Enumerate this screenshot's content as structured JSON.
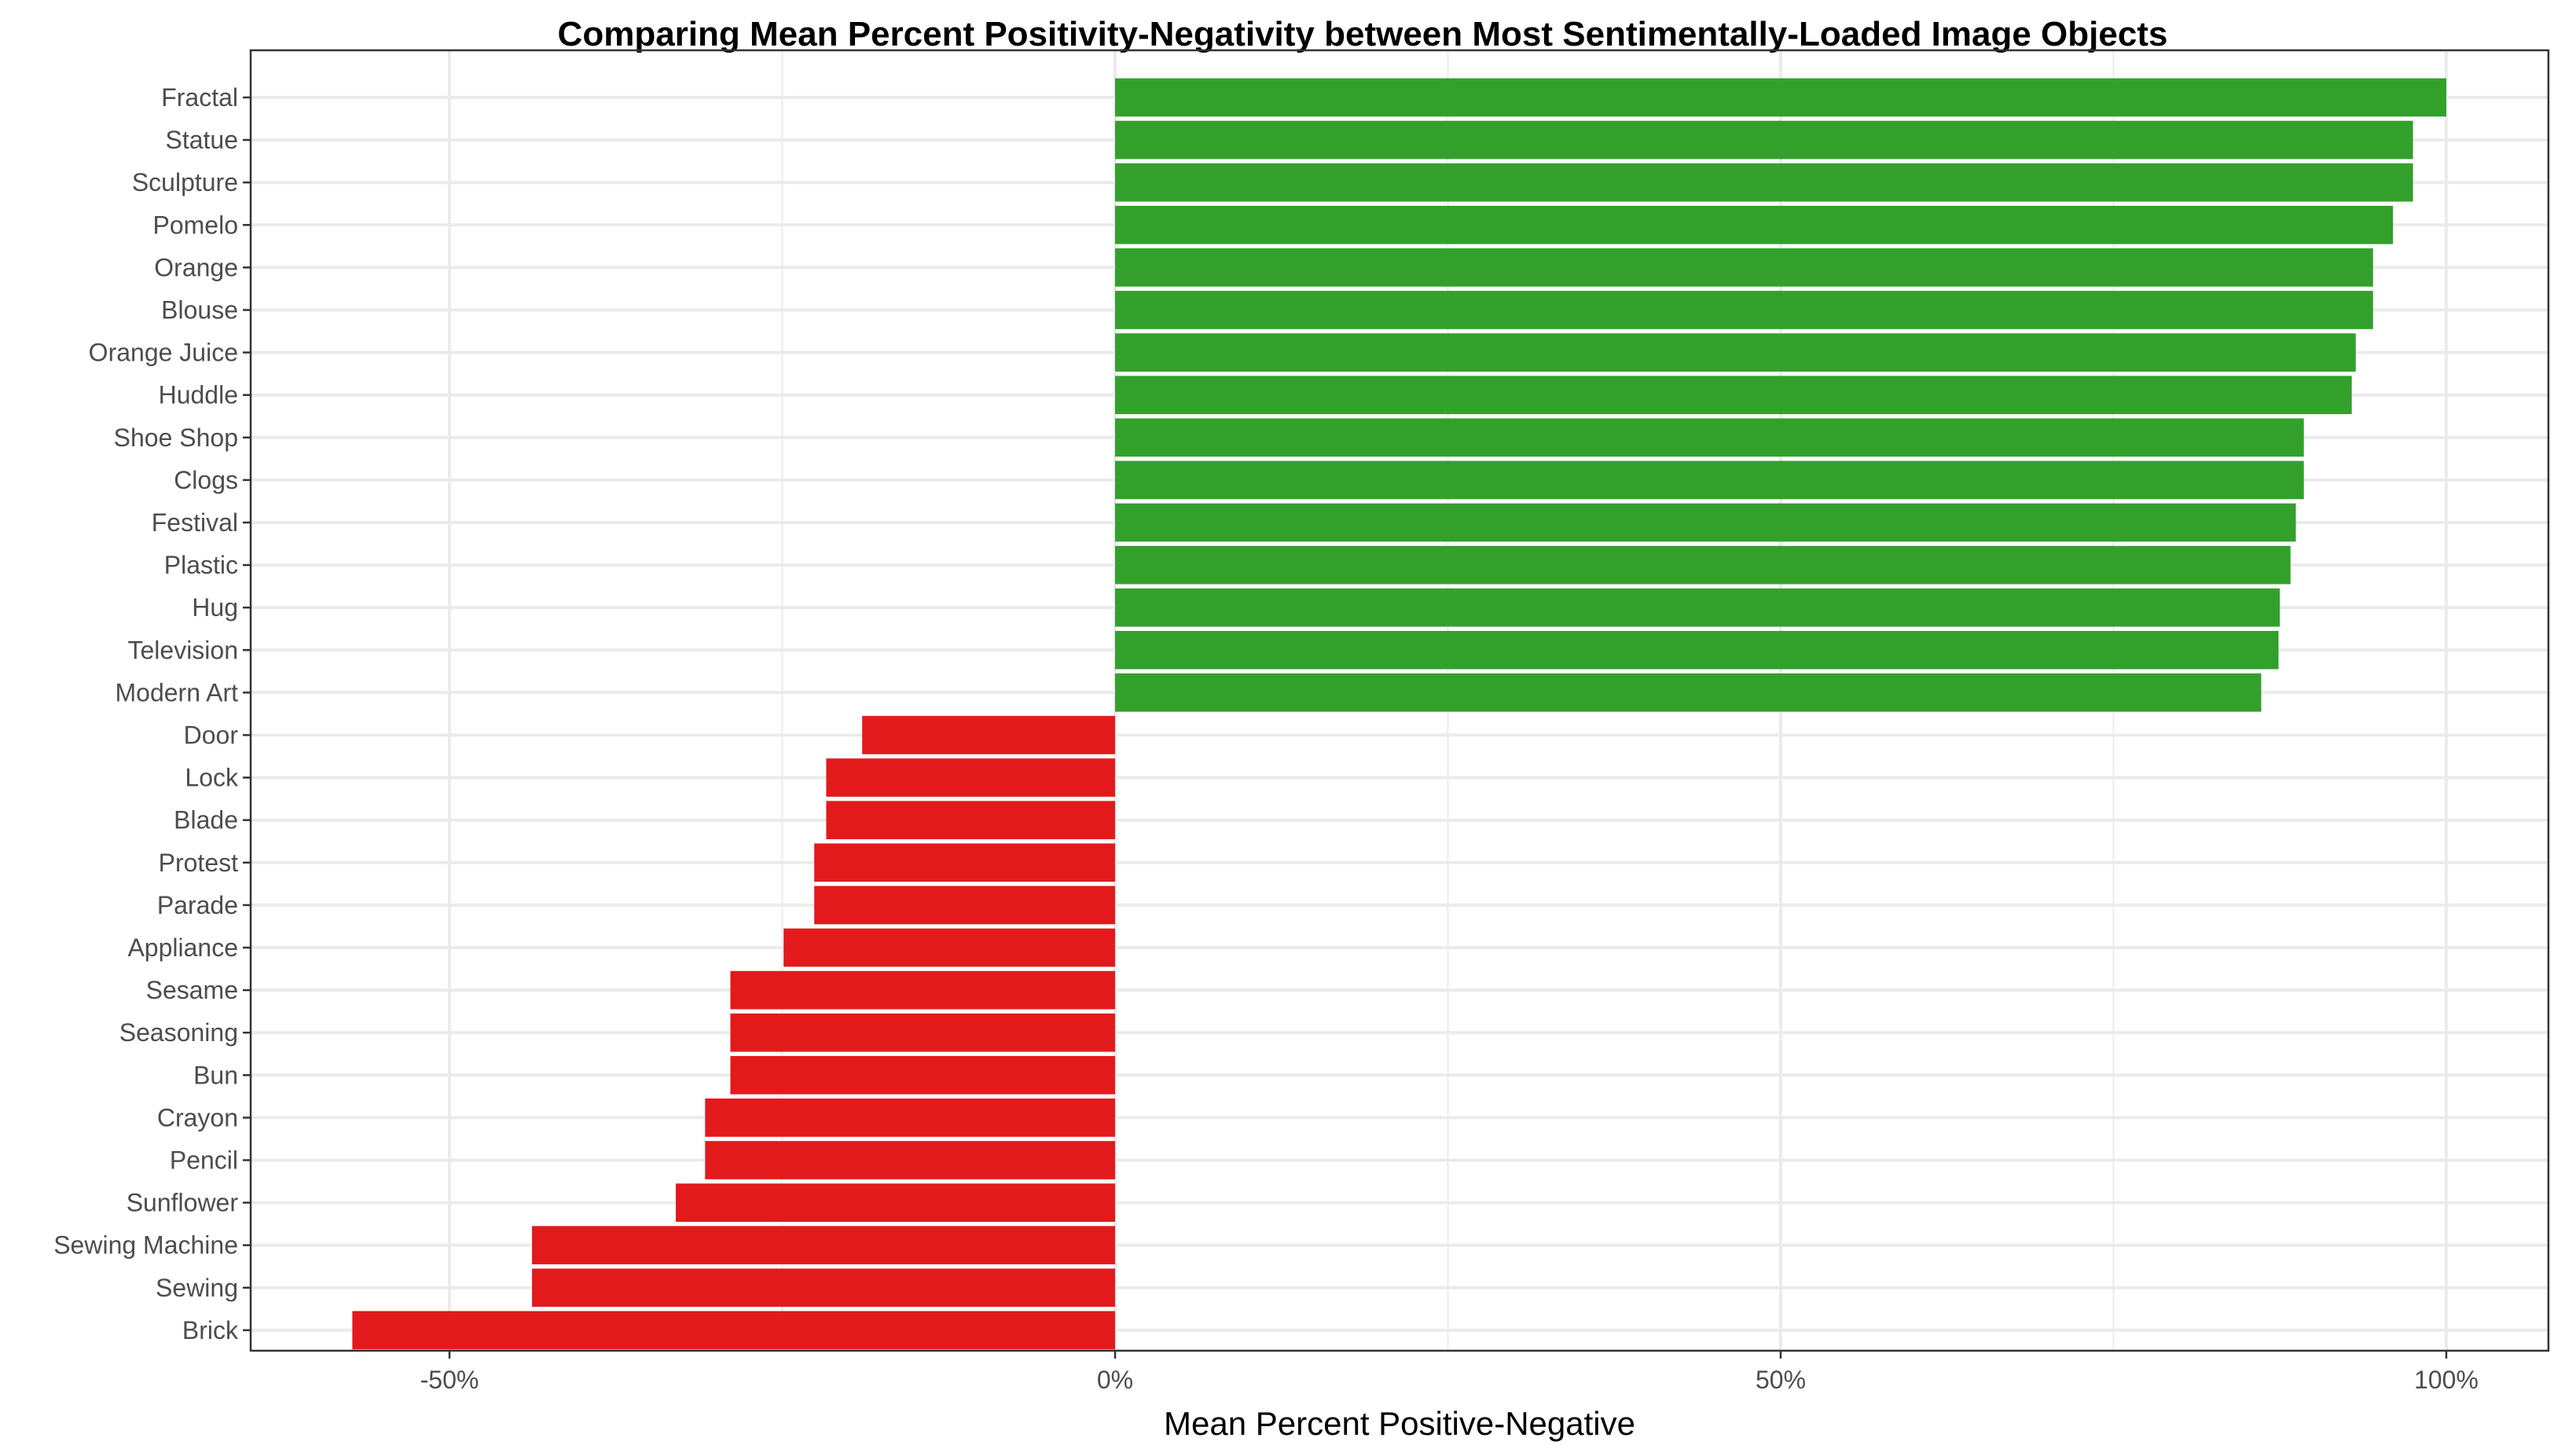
{
  "chart_data": {
    "type": "bar",
    "orientation": "horizontal",
    "title": "Comparing Mean Percent Positivity-Negativity between Most Sentimentally-Loaded Image Objects",
    "xlabel": "Mean Percent Positive-Negative",
    "ylabel": "",
    "xlim": [
      -65,
      104
    ],
    "x_ticks": [
      -50,
      0,
      50,
      100
    ],
    "x_tick_labels": [
      "-50%",
      "0%",
      "50%",
      "100%"
    ],
    "grid": true,
    "colors": {
      "positive": "#33a02c",
      "negative": "#e31a1c"
    },
    "categories": [
      "Fractal",
      "Statue",
      "Sculpture",
      "Pomelo",
      "Orange",
      "Blouse",
      "Orange Juice",
      "Huddle",
      "Shoe Shop",
      "Clogs",
      "Festival",
      "Plastic",
      "Hug",
      "Television",
      "Modern Art",
      "Door",
      "Lock",
      "Blade",
      "Protest",
      "Parade",
      "Appliance",
      "Sesame",
      "Seasoning",
      "Bun",
      "Crayon",
      "Pencil",
      "Sunflower",
      "Sewing Machine",
      "Sewing",
      "Brick"
    ],
    "values": [
      100,
      97.5,
      97.5,
      96,
      94.5,
      94.5,
      93.2,
      92.9,
      89.3,
      89.3,
      88.7,
      88.3,
      87.5,
      87.4,
      86.1,
      -19,
      -21.7,
      -21.7,
      -22.6,
      -22.6,
      -24.9,
      -28.9,
      -28.9,
      -28.9,
      -30.8,
      -30.8,
      -33,
      -43.8,
      -43.8,
      -57.3
    ]
  }
}
